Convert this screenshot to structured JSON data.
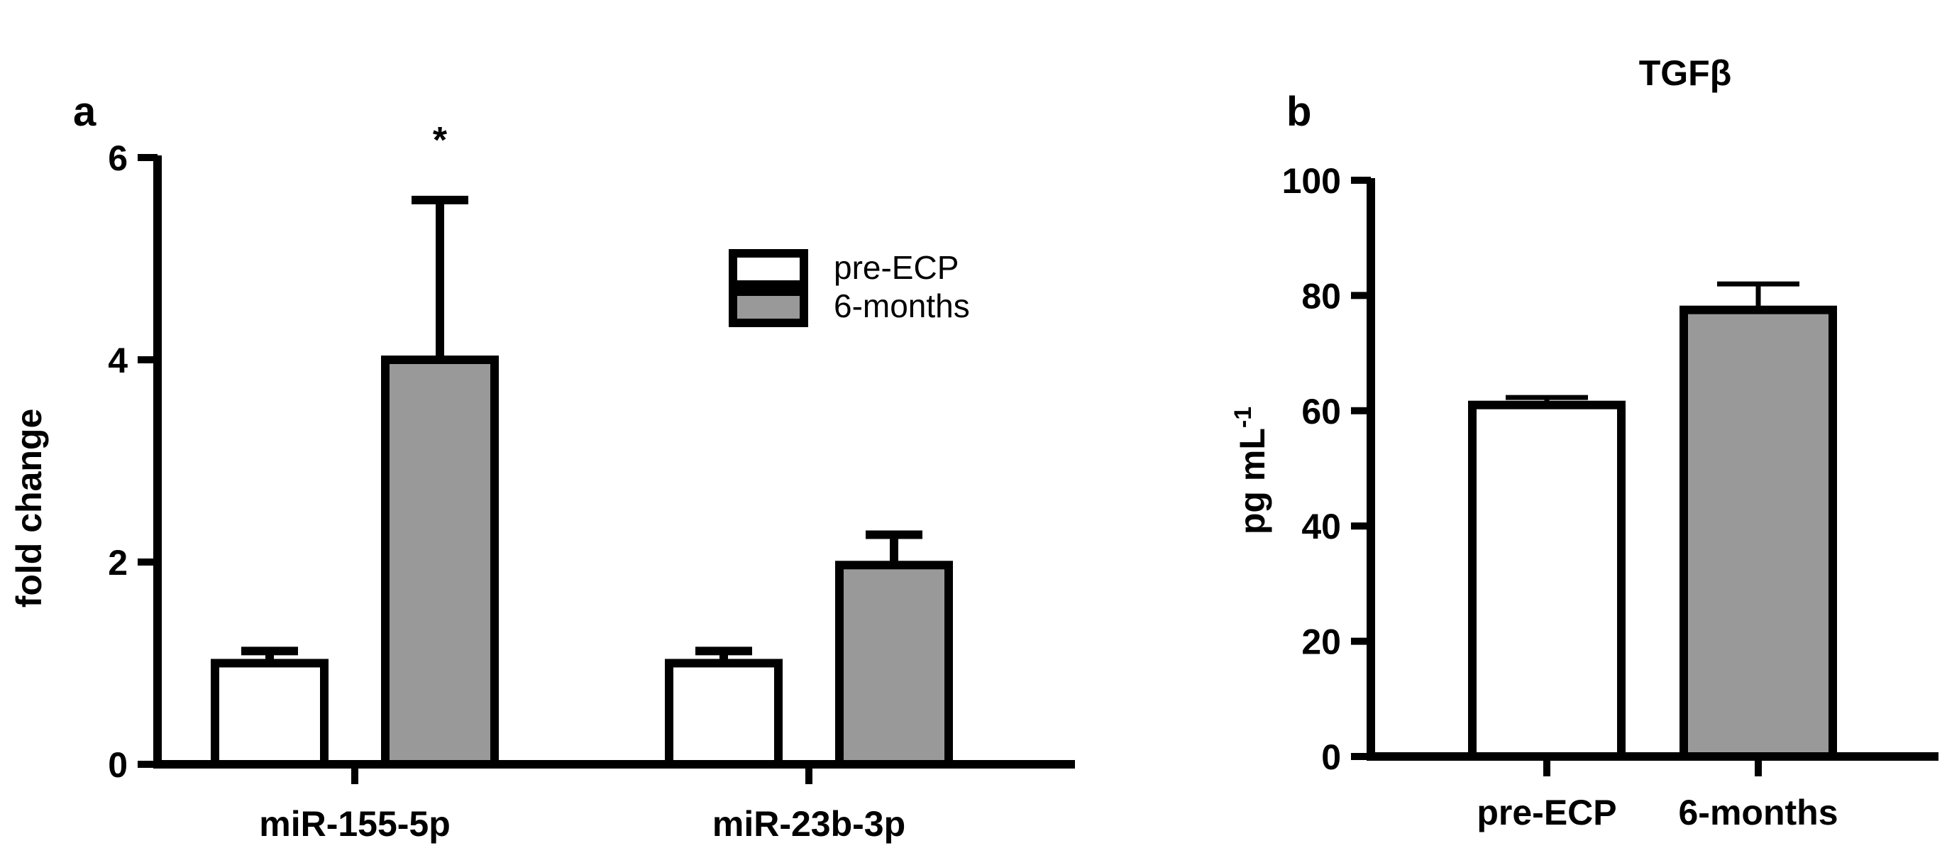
{
  "chart_data": [
    {
      "type": "bar",
      "panel": "a",
      "title": "",
      "xlabel": "",
      "ylabel": "fold change",
      "ylim": [
        0,
        6
      ],
      "yticks": [
        0,
        2,
        4,
        6
      ],
      "categories": [
        "miR-155-5p",
        "miR-23b-3p"
      ],
      "series": [
        {
          "name": "pre-ECP",
          "values": [
            1.0,
            1.0
          ],
          "errors": [
            0.12,
            0.12
          ],
          "fill": "#ffffff"
        },
        {
          "name": "6-months",
          "values": [
            4.0,
            1.97
          ],
          "errors": [
            1.58,
            0.3
          ],
          "fill": "#999999"
        }
      ],
      "legend": {
        "placement": "top-right"
      },
      "annotations": [
        {
          "text": "*",
          "category": "miR-155-5p",
          "series": "6-months"
        }
      ],
      "grid": false
    },
    {
      "type": "bar",
      "panel": "b",
      "title": "TGFβ",
      "xlabel": "",
      "ylabel": "pg mL",
      "ylabel_superscript": "-1",
      "ylim": [
        0,
        100
      ],
      "yticks": [
        0,
        20,
        40,
        60,
        80,
        100
      ],
      "categories": [
        "pre-ECP",
        "6-months"
      ],
      "series": [
        {
          "values": [
            61,
            77.5
          ],
          "errors": [
            1.3,
            4.5
          ],
          "fills": [
            "#ffffff",
            "#999999"
          ]
        }
      ],
      "grid": false
    }
  ]
}
